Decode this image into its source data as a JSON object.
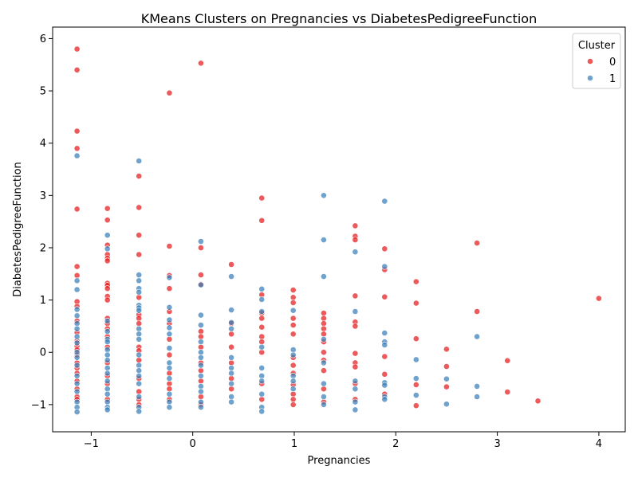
{
  "chart_data": {
    "type": "scatter",
    "title": "KMeans Clusters on Pregnancies vs DiabetesPedigreeFunction",
    "xlabel": "Pregnancies",
    "ylabel": "DiabetesPedigreeFunction",
    "xlim": [
      -1.38,
      4.26
    ],
    "ylim": [
      -1.52,
      6.22
    ],
    "xticks": [
      -1,
      0,
      1,
      2,
      3,
      4
    ],
    "yticks": [
      -1,
      0,
      1,
      2,
      3,
      4,
      5,
      6
    ],
    "grid": false,
    "legend": {
      "title": "Cluster",
      "placement": "top-right"
    },
    "series": [
      {
        "name": "0",
        "color": "#e41a1c",
        "points": [
          [
            -1.14,
            5.8
          ],
          [
            -1.14,
            5.4
          ],
          [
            -1.14,
            4.23
          ],
          [
            -1.14,
            3.9
          ],
          [
            -1.14,
            2.74
          ],
          [
            -1.14,
            1.64
          ],
          [
            -1.14,
            1.47
          ],
          [
            -1.14,
            0.97
          ],
          [
            -1.14,
            0.88
          ],
          [
            -1.14,
            0.6
          ],
          [
            -1.14,
            0.38
          ],
          [
            -1.14,
            0.22
          ],
          [
            -1.14,
            0.12
          ],
          [
            -1.14,
            0.05
          ],
          [
            -1.14,
            -0.05
          ],
          [
            -1.14,
            -0.2
          ],
          [
            -1.14,
            -0.3
          ],
          [
            -1.14,
            -0.4
          ],
          [
            -1.14,
            -0.55
          ],
          [
            -1.14,
            -0.7
          ],
          [
            -1.14,
            -0.85
          ],
          [
            -1.14,
            -0.9
          ],
          [
            -0.84,
            2.75
          ],
          [
            -0.84,
            2.53
          ],
          [
            -0.84,
            2.05
          ],
          [
            -0.84,
            1.87
          ],
          [
            -0.84,
            1.8
          ],
          [
            -0.84,
            1.75
          ],
          [
            -0.84,
            1.32
          ],
          [
            -0.84,
            1.28
          ],
          [
            -0.84,
            1.22
          ],
          [
            -0.84,
            1.07
          ],
          [
            -0.84,
            1.0
          ],
          [
            -0.84,
            0.65
          ],
          [
            -0.84,
            0.55
          ],
          [
            -0.84,
            0.45
          ],
          [
            -0.84,
            0.3
          ],
          [
            -0.84,
            0.1
          ],
          [
            -0.84,
            -0.2
          ],
          [
            -0.84,
            -0.45
          ],
          [
            -0.84,
            -0.6
          ],
          [
            -0.84,
            -0.9
          ],
          [
            -0.53,
            3.37
          ],
          [
            -0.53,
            2.77
          ],
          [
            -0.53,
            2.24
          ],
          [
            -0.53,
            1.87
          ],
          [
            -0.53,
            1.05
          ],
          [
            -0.53,
            0.72
          ],
          [
            -0.53,
            0.65
          ],
          [
            -0.53,
            0.55
          ],
          [
            -0.53,
            0.1
          ],
          [
            -0.53,
            0.03
          ],
          [
            -0.53,
            -0.15
          ],
          [
            -0.53,
            -0.5
          ],
          [
            -0.53,
            -0.75
          ],
          [
            -0.53,
            -0.9
          ],
          [
            -0.53,
            -1.0
          ],
          [
            -0.23,
            4.96
          ],
          [
            -0.23,
            2.03
          ],
          [
            -0.23,
            1.47
          ],
          [
            -0.23,
            1.22
          ],
          [
            -0.23,
            0.78
          ],
          [
            -0.23,
            0.55
          ],
          [
            -0.23,
            0.25
          ],
          [
            -0.23,
            -0.05
          ],
          [
            -0.23,
            -0.4
          ],
          [
            -0.23,
            -0.6
          ],
          [
            -0.23,
            -0.7
          ],
          [
            -0.23,
            -0.9
          ],
          [
            0.08,
            5.53
          ],
          [
            0.08,
            2.0
          ],
          [
            0.08,
            1.48
          ],
          [
            0.08,
            1.3
          ],
          [
            0.08,
            0.4
          ],
          [
            0.08,
            0.3
          ],
          [
            0.08,
            0.1
          ],
          [
            0.08,
            -0.2
          ],
          [
            0.08,
            -0.35
          ],
          [
            0.08,
            -0.55
          ],
          [
            0.08,
            -0.85
          ],
          [
            0.08,
            -1.0
          ],
          [
            0.38,
            1.68
          ],
          [
            0.38,
            0.55
          ],
          [
            0.38,
            0.35
          ],
          [
            0.38,
            0.1
          ],
          [
            0.38,
            -0.2
          ],
          [
            0.38,
            -0.5
          ],
          [
            0.38,
            -0.7
          ],
          [
            0.68,
            2.95
          ],
          [
            0.68,
            2.52
          ],
          [
            0.68,
            1.1
          ],
          [
            0.68,
            0.75
          ],
          [
            0.68,
            0.65
          ],
          [
            0.68,
            0.48
          ],
          [
            0.68,
            0.3
          ],
          [
            0.68,
            0.2
          ],
          [
            0.68,
            0.0
          ],
          [
            0.68,
            -0.6
          ],
          [
            0.68,
            -0.9
          ],
          [
            0.99,
            1.19
          ],
          [
            0.99,
            1.05
          ],
          [
            0.99,
            0.95
          ],
          [
            0.99,
            0.65
          ],
          [
            0.99,
            0.52
          ],
          [
            0.99,
            0.35
          ],
          [
            0.99,
            -0.1
          ],
          [
            0.99,
            -0.25
          ],
          [
            0.99,
            -0.4
          ],
          [
            0.99,
            -0.62
          ],
          [
            0.99,
            -0.8
          ],
          [
            0.99,
            -0.9
          ],
          [
            0.99,
            -1.0
          ],
          [
            1.29,
            0.75
          ],
          [
            1.29,
            0.65
          ],
          [
            1.29,
            0.55
          ],
          [
            1.29,
            0.45
          ],
          [
            1.29,
            0.35
          ],
          [
            1.29,
            0.2
          ],
          [
            1.29,
            0.0
          ],
          [
            1.29,
            -0.15
          ],
          [
            1.29,
            -0.35
          ],
          [
            1.29,
            -0.7
          ],
          [
            1.29,
            -0.95
          ],
          [
            1.6,
            2.42
          ],
          [
            1.6,
            2.22
          ],
          [
            1.6,
            2.15
          ],
          [
            1.6,
            1.08
          ],
          [
            1.6,
            0.58
          ],
          [
            1.6,
            0.5
          ],
          [
            1.6,
            -0.02
          ],
          [
            1.6,
            -0.2
          ],
          [
            1.6,
            -0.28
          ],
          [
            1.6,
            -0.6
          ],
          [
            1.6,
            -0.9
          ],
          [
            1.89,
            1.98
          ],
          [
            1.89,
            1.58
          ],
          [
            1.89,
            1.06
          ],
          [
            1.89,
            -0.08
          ],
          [
            1.89,
            -0.42
          ],
          [
            1.89,
            -0.8
          ],
          [
            2.2,
            1.35
          ],
          [
            2.2,
            0.94
          ],
          [
            2.2,
            0.26
          ],
          [
            2.2,
            -0.62
          ],
          [
            2.2,
            -1.02
          ],
          [
            2.5,
            0.06
          ],
          [
            2.5,
            -0.27
          ],
          [
            2.5,
            -0.66
          ],
          [
            2.8,
            2.09
          ],
          [
            2.8,
            0.78
          ],
          [
            3.1,
            -0.16
          ],
          [
            3.1,
            -0.76
          ],
          [
            3.4,
            -0.93
          ],
          [
            4.0,
            1.03
          ]
        ]
      },
      {
        "name": "1",
        "color": "#377eb8",
        "points": [
          [
            -1.14,
            3.76
          ],
          [
            -1.14,
            1.37
          ],
          [
            -1.14,
            1.2
          ],
          [
            -1.14,
            0.82
          ],
          [
            -1.14,
            0.7
          ],
          [
            -1.14,
            0.55
          ],
          [
            -1.14,
            0.45
          ],
          [
            -1.14,
            0.3
          ],
          [
            -1.14,
            0.18
          ],
          [
            -1.14,
            0.0
          ],
          [
            -1.14,
            -0.1
          ],
          [
            -1.14,
            -0.25
          ],
          [
            -1.14,
            -0.45
          ],
          [
            -1.14,
            -0.6
          ],
          [
            -1.14,
            -0.75
          ],
          [
            -1.14,
            -0.95
          ],
          [
            -1.14,
            -1.05
          ],
          [
            -1.14,
            -1.14
          ],
          [
            -0.84,
            2.24
          ],
          [
            -0.84,
            1.98
          ],
          [
            -0.84,
            0.6
          ],
          [
            -0.84,
            0.4
          ],
          [
            -0.84,
            0.25
          ],
          [
            -0.84,
            0.2
          ],
          [
            -0.84,
            0.05
          ],
          [
            -0.84,
            -0.05
          ],
          [
            -0.84,
            -0.15
          ],
          [
            -0.84,
            -0.3
          ],
          [
            -0.84,
            -0.4
          ],
          [
            -0.84,
            -0.55
          ],
          [
            -0.84,
            -0.7
          ],
          [
            -0.84,
            -0.8
          ],
          [
            -0.84,
            -0.95
          ],
          [
            -0.84,
            -1.05
          ],
          [
            -0.84,
            -1.1
          ],
          [
            -0.53,
            3.66
          ],
          [
            -0.53,
            1.48
          ],
          [
            -0.53,
            1.37
          ],
          [
            -0.53,
            1.22
          ],
          [
            -0.53,
            1.15
          ],
          [
            -0.53,
            0.9
          ],
          [
            -0.53,
            0.85
          ],
          [
            -0.53,
            0.8
          ],
          [
            -0.53,
            0.45
          ],
          [
            -0.53,
            0.35
          ],
          [
            -0.53,
            0.25
          ],
          [
            -0.53,
            -0.05
          ],
          [
            -0.53,
            -0.25
          ],
          [
            -0.53,
            -0.35
          ],
          [
            -0.53,
            -0.45
          ],
          [
            -0.53,
            -0.6
          ],
          [
            -0.53,
            -0.85
          ],
          [
            -0.53,
            -1.05
          ],
          [
            -0.53,
            -1.13
          ],
          [
            -0.23,
            1.43
          ],
          [
            -0.23,
            0.86
          ],
          [
            -0.23,
            0.62
          ],
          [
            -0.23,
            0.47
          ],
          [
            -0.23,
            0.35
          ],
          [
            -0.23,
            0.08
          ],
          [
            -0.23,
            -0.2
          ],
          [
            -0.23,
            -0.3
          ],
          [
            -0.23,
            -0.5
          ],
          [
            -0.23,
            -0.8
          ],
          [
            -0.23,
            -0.95
          ],
          [
            -0.23,
            -1.05
          ],
          [
            0.08,
            2.12
          ],
          [
            0.08,
            1.29
          ],
          [
            0.08,
            0.71
          ],
          [
            0.08,
            0.52
          ],
          [
            0.08,
            0.2
          ],
          [
            0.08,
            0.0
          ],
          [
            0.08,
            -0.1
          ],
          [
            0.08,
            -0.25
          ],
          [
            0.08,
            -0.45
          ],
          [
            0.08,
            -0.65
          ],
          [
            0.08,
            -0.75
          ],
          [
            0.08,
            -0.95
          ],
          [
            0.08,
            -1.05
          ],
          [
            0.38,
            1.45
          ],
          [
            0.38,
            0.81
          ],
          [
            0.38,
            0.57
          ],
          [
            0.38,
            0.45
          ],
          [
            0.38,
            -0.1
          ],
          [
            0.38,
            -0.3
          ],
          [
            0.38,
            -0.4
          ],
          [
            0.38,
            -0.6
          ],
          [
            0.38,
            -0.85
          ],
          [
            0.38,
            -0.95
          ],
          [
            0.68,
            1.21
          ],
          [
            0.68,
            1.01
          ],
          [
            0.68,
            0.78
          ],
          [
            0.68,
            0.1
          ],
          [
            0.68,
            -0.3
          ],
          [
            0.68,
            -0.45
          ],
          [
            0.68,
            -0.55
          ],
          [
            0.68,
            -0.8
          ],
          [
            0.68,
            -1.05
          ],
          [
            0.68,
            -1.13
          ],
          [
            0.99,
            0.8
          ],
          [
            0.99,
            0.05
          ],
          [
            0.99,
            -0.05
          ],
          [
            0.99,
            -0.45
          ],
          [
            0.99,
            -0.55
          ],
          [
            0.99,
            -0.7
          ],
          [
            1.29,
            3.0
          ],
          [
            1.29,
            2.15
          ],
          [
            1.29,
            1.45
          ],
          [
            1.29,
            0.25
          ],
          [
            1.29,
            -0.2
          ],
          [
            1.29,
            -0.6
          ],
          [
            1.29,
            -0.85
          ],
          [
            1.29,
            -1.0
          ],
          [
            1.6,
            1.92
          ],
          [
            1.6,
            0.78
          ],
          [
            1.6,
            -0.55
          ],
          [
            1.6,
            -0.7
          ],
          [
            1.6,
            -0.95
          ],
          [
            1.6,
            -1.1
          ],
          [
            1.89,
            2.89
          ],
          [
            1.89,
            1.64
          ],
          [
            1.89,
            0.37
          ],
          [
            1.89,
            0.2
          ],
          [
            1.89,
            0.14
          ],
          [
            1.89,
            -0.58
          ],
          [
            1.89,
            -0.63
          ],
          [
            1.89,
            -0.85
          ],
          [
            1.89,
            -0.9
          ],
          [
            2.2,
            -0.14
          ],
          [
            2.2,
            -0.5
          ],
          [
            2.2,
            -0.82
          ],
          [
            2.5,
            -0.51
          ],
          [
            2.5,
            -0.99
          ],
          [
            2.8,
            0.3
          ],
          [
            2.8,
            -0.65
          ],
          [
            2.8,
            -0.85
          ]
        ]
      }
    ]
  }
}
